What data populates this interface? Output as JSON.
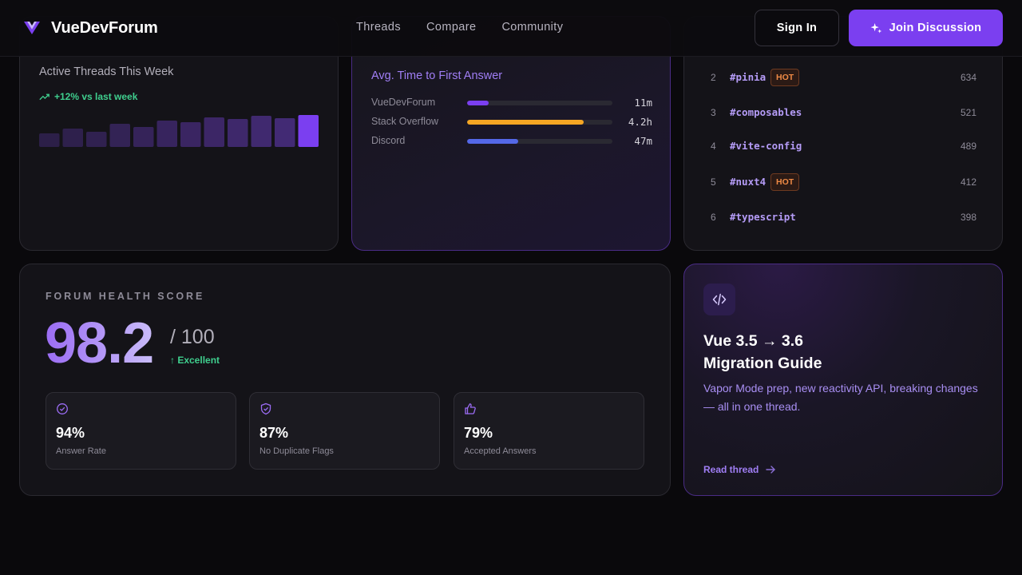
{
  "app": {
    "name": "VueDevForum"
  },
  "nav": {
    "links": [
      "Threads",
      "Compare",
      "Community"
    ],
    "sign_in": "Sign In",
    "join": "Join Discussion"
  },
  "threads_card": {
    "label": "Active Threads This Week",
    "trend": "+12% vs last week",
    "bars_relative": [
      0.42,
      0.58,
      0.48,
      0.72,
      0.62,
      0.82,
      0.78,
      0.92,
      0.88,
      0.98,
      0.9,
      1.0
    ],
    "bar_color": "#4a2e82",
    "bar_highlight_color": "#7b3ff0"
  },
  "answer_card": {
    "title": "Avg. Time to First Answer",
    "rows": [
      {
        "name": "VueDevForum",
        "value": "11m",
        "fill": 0.15,
        "color": "#7b3ff0"
      },
      {
        "name": "Stack Overflow",
        "value": "4.2h",
        "fill": 0.8,
        "color": "#f5a623"
      },
      {
        "name": "Discord",
        "value": "47m",
        "fill": 0.35,
        "color": "#5468e8"
      }
    ]
  },
  "tags_card": {
    "rows": [
      {
        "rank": "2",
        "tag": "#pinia",
        "hot": "HOT",
        "count": "634"
      },
      {
        "rank": "3",
        "tag": "#composables",
        "hot": "",
        "count": "521"
      },
      {
        "rank": "4",
        "tag": "#vite-config",
        "hot": "",
        "count": "489"
      },
      {
        "rank": "5",
        "tag": "#nuxt4",
        "hot": "HOT",
        "count": "412"
      },
      {
        "rank": "6",
        "tag": "#typescript",
        "hot": "",
        "count": "398"
      }
    ]
  },
  "health_card": {
    "label": "FORUM HEALTH SCORE",
    "score": "98.2",
    "max": "/ 100",
    "status": "↑ Excellent",
    "stats": [
      {
        "icon": "check-circle-icon",
        "value": "94%",
        "label": "Answer Rate"
      },
      {
        "icon": "shield-check-icon",
        "value": "87%",
        "label": "No Duplicate Flags"
      },
      {
        "icon": "thumbs-up-icon",
        "value": "79%",
        "label": "Accepted Answers"
      }
    ]
  },
  "guide_card": {
    "title_line1": "Vue 3.5 → 3.6",
    "title_line2": "Migration Guide",
    "description": "Vapor Mode prep, new reactivity API, breaking changes — all in one thread.",
    "link": "Read thread"
  },
  "colors": {
    "accent": "#7b3ff0",
    "success": "#3fcf8e",
    "hot": "#ef8a45"
  }
}
